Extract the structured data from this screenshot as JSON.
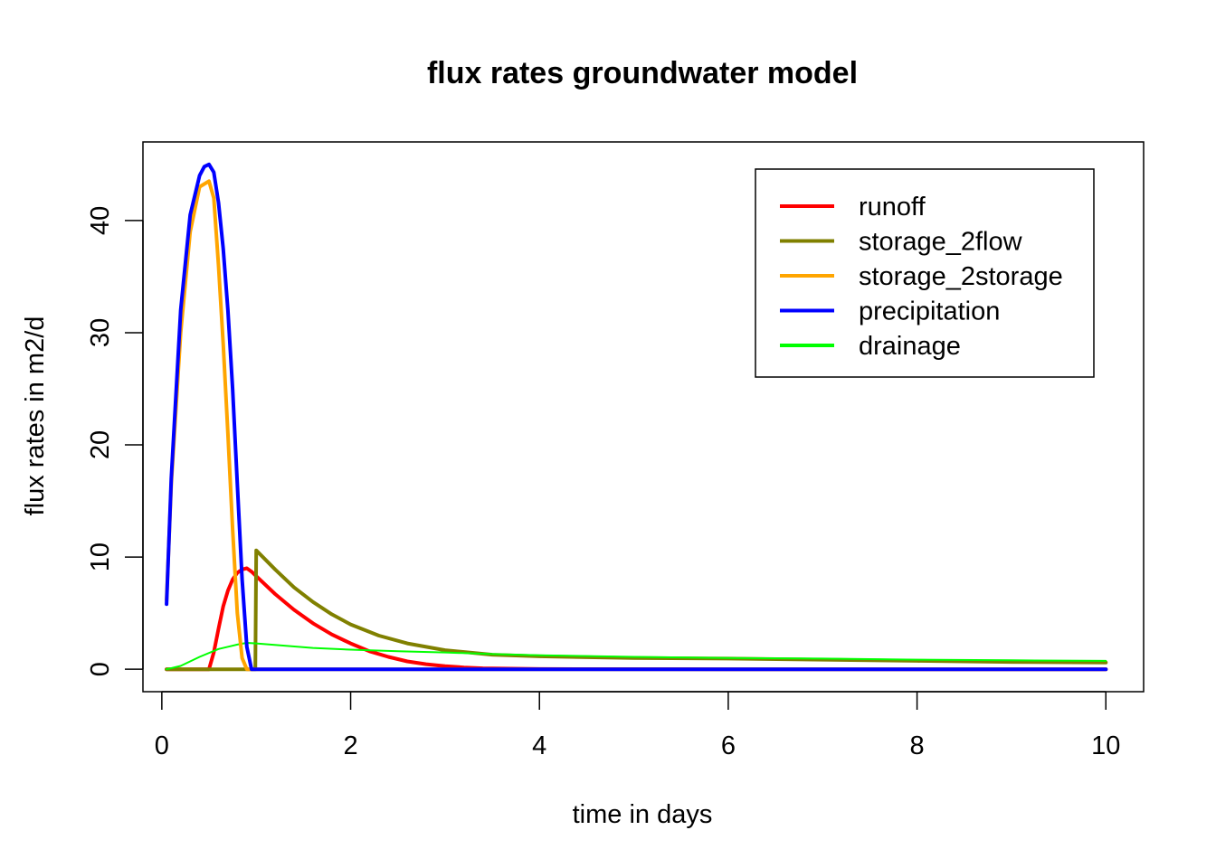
{
  "chart_data": {
    "type": "line",
    "title": "flux rates groundwater model",
    "xlabel": "time in days",
    "ylabel": "flux rates in m2/d",
    "xlim": [
      -0.2,
      10.4
    ],
    "ylim": [
      -2,
      47
    ],
    "xticks": [
      0,
      2,
      4,
      6,
      8,
      10
    ],
    "yticks": [
      0,
      10,
      20,
      30,
      40
    ],
    "xtick_labels": [
      "0",
      "2",
      "4",
      "6",
      "8",
      "10"
    ],
    "ytick_labels": [
      "0",
      "10",
      "20",
      "30",
      "40"
    ],
    "legend_position": "top-right",
    "series": [
      {
        "name": "runoff",
        "color": "#ff0000",
        "x": [
          0.05,
          0.5,
          0.55,
          0.6,
          0.65,
          0.7,
          0.75,
          0.8,
          0.85,
          0.9,
          0.95,
          1.0,
          1.2,
          1.4,
          1.6,
          1.8,
          2.0,
          2.2,
          2.4,
          2.6,
          2.8,
          3.0,
          3.2,
          3.4,
          4.0,
          6.0,
          8.0,
          10.0
        ],
        "y": [
          0,
          0,
          1.5,
          3.6,
          5.6,
          7.0,
          8.0,
          8.6,
          8.9,
          9.0,
          8.7,
          8.3,
          6.7,
          5.3,
          4.1,
          3.1,
          2.3,
          1.6,
          1.1,
          0.7,
          0.45,
          0.28,
          0.16,
          0.09,
          0.02,
          0,
          0,
          0
        ]
      },
      {
        "name": "storage_2flow",
        "color": "#808000",
        "x": [
          0.05,
          0.9,
          0.95,
          0.99,
          1.0,
          1.2,
          1.4,
          1.6,
          1.8,
          2.0,
          2.3,
          2.6,
          3.0,
          3.5,
          4.0,
          5.0,
          6.0,
          7.0,
          8.0,
          9.0,
          10.0
        ],
        "y": [
          0,
          0,
          0,
          0,
          10.6,
          8.9,
          7.3,
          6.0,
          4.9,
          4.0,
          3.0,
          2.3,
          1.7,
          1.3,
          1.15,
          1.0,
          0.95,
          0.85,
          0.75,
          0.65,
          0.6
        ]
      },
      {
        "name": "storage_2storage",
        "color": "#ffa500",
        "x": [
          0.05,
          0.1,
          0.2,
          0.3,
          0.4,
          0.5,
          0.55,
          0.6,
          0.65,
          0.7,
          0.75,
          0.8,
          0.85,
          0.9,
          0.95,
          1.0,
          10.0
        ],
        "y": [
          6.2,
          16.5,
          30.0,
          39.0,
          43.0,
          43.5,
          42.0,
          36.0,
          29.0,
          21.0,
          12.5,
          5.0,
          1.0,
          0,
          0,
          0,
          0
        ]
      },
      {
        "name": "precipitation",
        "color": "#0000ff",
        "x": [
          0.05,
          0.1,
          0.2,
          0.3,
          0.4,
          0.45,
          0.5,
          0.55,
          0.6,
          0.65,
          0.7,
          0.75,
          0.8,
          0.85,
          0.9,
          0.95,
          1.0,
          10.0
        ],
        "y": [
          5.8,
          17.0,
          32.0,
          40.5,
          44.0,
          44.8,
          45.0,
          44.3,
          41.6,
          37.5,
          32.0,
          25.0,
          16.5,
          8.0,
          2.0,
          0,
          0,
          0
        ]
      },
      {
        "name": "drainage",
        "color": "#00ff00",
        "x": [
          0.05,
          0.2,
          0.4,
          0.6,
          0.8,
          0.9,
          1.0,
          1.3,
          1.6,
          2.0,
          2.5,
          3.0,
          3.5,
          4.0,
          5.0,
          6.0,
          7.0,
          8.0,
          9.0,
          10.0
        ],
        "y": [
          0,
          0.3,
          1.1,
          1.8,
          2.2,
          2.35,
          2.3,
          2.1,
          1.9,
          1.75,
          1.6,
          1.5,
          1.35,
          1.25,
          1.1,
          1.0,
          0.95,
          0.85,
          0.8,
          0.75
        ]
      }
    ]
  }
}
